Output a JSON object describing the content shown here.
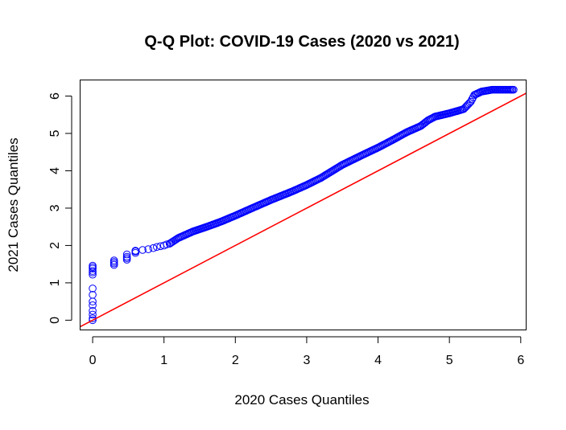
{
  "chart_data": {
    "type": "scatter",
    "title": "Q-Q Plot: COVID-19 Cases (2020 vs 2021)",
    "xlabel": "2020 Cases Quantiles",
    "ylabel": "2021 Cases Quantiles",
    "xlim": [
      -0.17,
      6.07
    ],
    "ylim": [
      -0.25,
      6.42
    ],
    "x_ticks": [
      0,
      1,
      2,
      3,
      4,
      5,
      6
    ],
    "y_ticks": [
      0,
      1,
      2,
      3,
      4,
      5,
      6
    ],
    "grid": false,
    "legend": "none",
    "point_color": "#0000ff",
    "reference_line": {
      "slope": 1,
      "intercept": 0,
      "color": "#ff0000"
    },
    "points": {
      "x": [
        0,
        0,
        0,
        0,
        0,
        0,
        0,
        0,
        0,
        0,
        0,
        0,
        0,
        0,
        0.3,
        0.3,
        0.3,
        0.3,
        0.48,
        0.48,
        0.48,
        0.48,
        0.6,
        0.6,
        0.6,
        0.7,
        0.78,
        0.85,
        0.9,
        0.95,
        1.0,
        1.04,
        1.08
      ],
      "y": [
        0,
        0.05,
        0.15,
        0.25,
        0.4,
        0.5,
        0.68,
        0.85,
        1.22,
        1.28,
        1.32,
        1.38,
        1.42,
        1.46,
        1.48,
        1.52,
        1.56,
        1.6,
        1.62,
        1.66,
        1.7,
        1.76,
        1.8,
        1.84,
        1.86,
        1.88,
        1.9,
        1.93,
        1.96,
        1.98,
        2.0,
        2.03,
        2.05
      ]
    },
    "curve": {
      "x": [
        1.08,
        1.2,
        1.4,
        1.6,
        1.8,
        2.0,
        2.2,
        2.5,
        2.8,
        3.0,
        3.2,
        3.5,
        3.8,
        4.0,
        4.2,
        4.4,
        4.6,
        4.7,
        4.8,
        5.0,
        5.2,
        5.3,
        5.35,
        5.45,
        5.6,
        5.8,
        5.9
      ],
      "y": [
        2.05,
        2.2,
        2.37,
        2.5,
        2.64,
        2.8,
        2.97,
        3.22,
        3.45,
        3.62,
        3.81,
        4.16,
        4.44,
        4.62,
        4.82,
        5.03,
        5.2,
        5.35,
        5.45,
        5.54,
        5.65,
        5.85,
        6.03,
        6.12,
        6.17,
        6.17,
        6.17
      ]
    }
  }
}
